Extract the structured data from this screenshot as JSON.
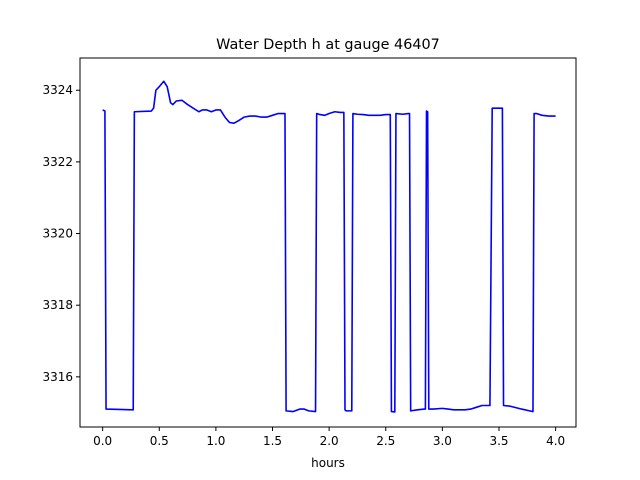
{
  "chart_data": {
    "type": "line",
    "title": "Water Depth h at gauge 46407",
    "xlabel": "hours",
    "ylabel": "",
    "xlim": [
      -0.2,
      4.18
    ],
    "ylim": [
      3314.6,
      3324.9
    ],
    "xticks": [
      0.0,
      0.5,
      1.0,
      1.5,
      2.0,
      2.5,
      3.0,
      3.5,
      4.0
    ],
    "xtick_labels": [
      "0.0",
      "0.5",
      "1.0",
      "1.5",
      "2.0",
      "2.5",
      "3.0",
      "3.5",
      "4.0"
    ],
    "yticks": [
      3316,
      3318,
      3320,
      3322,
      3324
    ],
    "ytick_labels": [
      "3316",
      "3318",
      "3320",
      "3322",
      "3324"
    ],
    "grid": false,
    "series": [
      {
        "color": "#0000ff",
        "x": [
          0.0,
          0.02,
          0.03,
          0.27,
          0.28,
          0.43,
          0.45,
          0.47,
          0.5,
          0.54,
          0.57,
          0.6,
          0.62,
          0.65,
          0.7,
          0.75,
          0.8,
          0.85,
          0.88,
          0.92,
          0.96,
          1.0,
          1.04,
          1.08,
          1.12,
          1.16,
          1.2,
          1.25,
          1.3,
          1.35,
          1.4,
          1.45,
          1.5,
          1.55,
          1.6,
          1.61,
          1.62,
          1.68,
          1.74,
          1.78,
          1.82,
          1.88,
          1.89,
          1.92,
          1.96,
          2.0,
          2.05,
          2.1,
          2.13,
          2.14,
          2.15,
          2.2,
          2.21,
          2.25,
          2.3,
          2.35,
          2.4,
          2.45,
          2.5,
          2.54,
          2.55,
          2.58,
          2.59,
          2.65,
          2.7,
          2.71,
          2.72,
          2.78,
          2.84,
          2.85,
          2.86,
          2.87,
          2.88,
          2.92,
          3.0,
          3.05,
          3.1,
          3.15,
          3.2,
          3.25,
          3.3,
          3.35,
          3.41,
          3.42,
          3.44,
          3.52,
          3.53,
          3.54,
          3.6,
          3.7,
          3.8,
          3.81,
          3.83,
          3.88,
          3.94,
          4.0
        ],
        "y": [
          3323.45,
          3323.42,
          3315.1,
          3315.08,
          3323.4,
          3323.42,
          3323.5,
          3324.0,
          3324.1,
          3324.25,
          3324.1,
          3323.65,
          3323.6,
          3323.7,
          3323.72,
          3323.6,
          3323.5,
          3323.4,
          3323.45,
          3323.45,
          3323.4,
          3323.45,
          3323.45,
          3323.25,
          3323.1,
          3323.08,
          3323.15,
          3323.25,
          3323.28,
          3323.28,
          3323.25,
          3323.25,
          3323.3,
          3323.35,
          3323.35,
          3323.35,
          3315.05,
          3315.03,
          3315.1,
          3315.1,
          3315.05,
          3315.03,
          3323.35,
          3323.32,
          3323.3,
          3323.35,
          3323.4,
          3323.38,
          3323.38,
          3315.08,
          3315.05,
          3315.05,
          3323.35,
          3323.33,
          3323.32,
          3323.3,
          3323.3,
          3323.3,
          3323.32,
          3323.32,
          3315.03,
          3315.02,
          3323.35,
          3323.33,
          3323.35,
          3323.35,
          3315.05,
          3315.08,
          3315.1,
          3315.1,
          3323.42,
          3323.4,
          3315.1,
          3315.1,
          3315.12,
          3315.1,
          3315.08,
          3315.08,
          3315.08,
          3315.1,
          3315.15,
          3315.2,
          3315.2,
          3315.2,
          3323.5,
          3323.5,
          3323.5,
          3315.2,
          3315.18,
          3315.1,
          3315.03,
          3323.35,
          3323.35,
          3323.3,
          3323.28,
          3323.28
        ]
      }
    ]
  }
}
